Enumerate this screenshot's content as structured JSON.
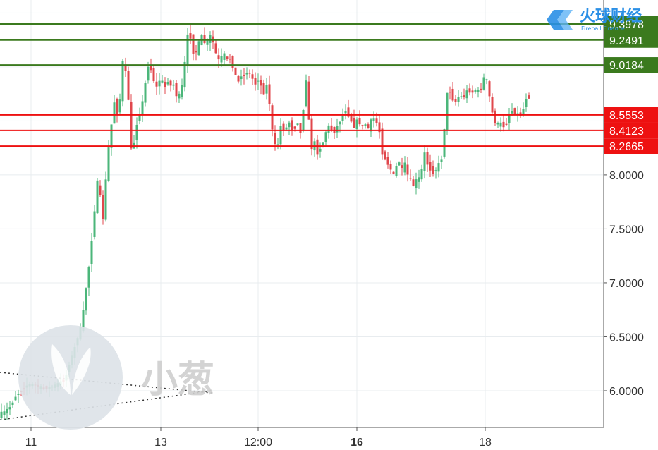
{
  "chart_data": {
    "type": "candlestick",
    "ylim": [
      5.66,
      9.62
    ],
    "y_ticks": [
      "6.0000",
      "6.5000",
      "7.0000",
      "7.5000",
      "8.0000"
    ],
    "x_ticks": [
      {
        "label": "11",
        "bold": false
      },
      {
        "label": "13",
        "bold": false
      },
      {
        "label": "12:00",
        "bold": false
      },
      {
        "label": "16",
        "bold": true
      },
      {
        "label": "18",
        "bold": false
      }
    ],
    "resistance_levels": [
      {
        "value": 9.3978,
        "label": "9.3978"
      },
      {
        "value": 9.2491,
        "label": "9.2491"
      },
      {
        "value": 9.0184,
        "label": "9.0184"
      }
    ],
    "support_levels": [
      {
        "value": 8.5553,
        "label": "8.5553"
      },
      {
        "value": 8.4123,
        "label": "8.4123"
      },
      {
        "value": 8.2665,
        "label": "8.2665"
      }
    ],
    "colors": {
      "up": "#4bb67a",
      "down": "#e0474c",
      "resistance": "#3b7a1e",
      "support": "#ee1111"
    },
    "path_points": [
      [
        0,
        5.78
      ],
      [
        8,
        5.8
      ],
      [
        16,
        5.85
      ],
      [
        24,
        5.95
      ],
      [
        32,
        6.0
      ],
      [
        40,
        6.05
      ],
      [
        48,
        6.06
      ],
      [
        56,
        6.04
      ],
      [
        64,
        6.02
      ],
      [
        72,
        6.03
      ],
      [
        80,
        6.05
      ],
      [
        88,
        6.08
      ],
      [
        94,
        6.1
      ],
      [
        100,
        6.25
      ],
      [
        106,
        6.35
      ],
      [
        112,
        6.5
      ],
      [
        118,
        6.62
      ],
      [
        122,
        6.85
      ],
      [
        126,
        7.05
      ],
      [
        130,
        7.25
      ],
      [
        134,
        7.55
      ],
      [
        138,
        7.8
      ],
      [
        141,
        8.0
      ],
      [
        144,
        7.8
      ],
      [
        148,
        7.6
      ],
      [
        152,
        7.95
      ],
      [
        156,
        8.25
      ],
      [
        159,
        8.35
      ],
      [
        162,
        8.7
      ],
      [
        166,
        8.65
      ],
      [
        170,
        8.5
      ],
      [
        173,
        8.8
      ],
      [
        176,
        9.05
      ],
      [
        180,
        8.95
      ],
      [
        184,
        8.7
      ],
      [
        187,
        8.3
      ],
      [
        190,
        8.1
      ],
      [
        193,
        8.4
      ],
      [
        197,
        8.5
      ],
      [
        201,
        8.6
      ],
      [
        205,
        8.7
      ],
      [
        209,
        8.9
      ],
      [
        213,
        9.05
      ],
      [
        217,
        8.95
      ],
      [
        221,
        8.85
      ],
      [
        225,
        8.8
      ],
      [
        229,
        8.9
      ],
      [
        233,
        8.85
      ],
      [
        237,
        8.8
      ],
      [
        241,
        8.9
      ],
      [
        245,
        8.8
      ],
      [
        249,
        8.85
      ],
      [
        253,
        8.7
      ],
      [
        257,
        8.75
      ],
      [
        261,
        8.85
      ],
      [
        265,
        9.1
      ],
      [
        269,
        9.35
      ],
      [
        273,
        9.25
      ],
      [
        277,
        9.1
      ],
      [
        281,
        9.15
      ],
      [
        285,
        9.25
      ],
      [
        289,
        9.3
      ],
      [
        293,
        9.2
      ],
      [
        297,
        9.25
      ],
      [
        301,
        9.3
      ],
      [
        305,
        9.2
      ],
      [
        309,
        9.1
      ],
      [
        313,
        9.05
      ],
      [
        317,
        9.1
      ],
      [
        321,
        9.12
      ],
      [
        325,
        9.05
      ],
      [
        329,
        9.08
      ],
      [
        333,
        8.98
      ],
      [
        337,
        8.9
      ],
      [
        341,
        8.85
      ],
      [
        345,
        8.95
      ],
      [
        349,
        8.9
      ],
      [
        353,
        8.97
      ],
      [
        357,
        8.92
      ],
      [
        361,
        8.88
      ],
      [
        365,
        8.83
      ],
      [
        369,
        8.9
      ],
      [
        373,
        8.8
      ],
      [
        377,
        8.75
      ],
      [
        381,
        8.85
      ],
      [
        385,
        8.6
      ],
      [
        389,
        8.35
      ],
      [
        393,
        8.25
      ],
      [
        397,
        8.3
      ],
      [
        401,
        8.5
      ],
      [
        405,
        8.4
      ],
      [
        409,
        8.45
      ],
      [
        413,
        8.5
      ],
      [
        417,
        8.4
      ],
      [
        421,
        8.45
      ],
      [
        425,
        8.5
      ],
      [
        429,
        8.35
      ],
      [
        433,
        8.7
      ],
      [
        437,
        8.95
      ],
      [
        440,
        8.5
      ],
      [
        444,
        8.25
      ],
      [
        448,
        8.3
      ],
      [
        452,
        8.2
      ],
      [
        456,
        8.25
      ],
      [
        460,
        8.3
      ],
      [
        464,
        8.4
      ],
      [
        468,
        8.45
      ],
      [
        472,
        8.42
      ],
      [
        476,
        8.4
      ],
      [
        480,
        8.45
      ],
      [
        484,
        8.5
      ],
      [
        488,
        8.55
      ],
      [
        492,
        8.6
      ],
      [
        496,
        8.55
      ],
      [
        500,
        8.5
      ],
      [
        504,
        8.45
      ],
      [
        508,
        8.5
      ],
      [
        512,
        8.48
      ],
      [
        516,
        8.45
      ],
      [
        520,
        8.47
      ],
      [
        524,
        8.43
      ],
      [
        528,
        8.5
      ],
      [
        532,
        8.52
      ],
      [
        536,
        8.48
      ],
      [
        540,
        8.4
      ],
      [
        544,
        8.2
      ],
      [
        548,
        8.15
      ],
      [
        552,
        8.1
      ],
      [
        556,
        8.05
      ],
      [
        560,
        8.0
      ],
      [
        564,
        8.08
      ],
      [
        568,
        8.12
      ],
      [
        572,
        8.05
      ],
      [
        576,
        8.1
      ],
      [
        580,
        8.0
      ],
      [
        584,
        7.95
      ],
      [
        588,
        7.9
      ],
      [
        592,
        7.95
      ],
      [
        596,
        7.97
      ],
      [
        600,
        8.05
      ],
      [
        604,
        8.2
      ],
      [
        608,
        8.1
      ],
      [
        612,
        8.05
      ],
      [
        616,
        8.02
      ],
      [
        620,
        8.05
      ],
      [
        624,
        8.1
      ],
      [
        628,
        8.15
      ],
      [
        631,
        8.3
      ],
      [
        634,
        8.7
      ],
      [
        638,
        8.8
      ],
      [
        642,
        8.75
      ],
      [
        646,
        8.65
      ],
      [
        650,
        8.7
      ],
      [
        654,
        8.75
      ],
      [
        658,
        8.7
      ],
      [
        662,
        8.75
      ],
      [
        666,
        8.8
      ],
      [
        670,
        8.75
      ],
      [
        674,
        8.78
      ],
      [
        678,
        8.8
      ],
      [
        682,
        8.75
      ],
      [
        686,
        8.85
      ],
      [
        690,
        8.95
      ],
      [
        694,
        8.8
      ],
      [
        698,
        8.65
      ],
      [
        702,
        8.5
      ],
      [
        706,
        8.48
      ],
      [
        710,
        8.45
      ],
      [
        714,
        8.5
      ],
      [
        718,
        8.4
      ],
      [
        722,
        8.55
      ],
      [
        726,
        8.58
      ],
      [
        730,
        8.6
      ],
      [
        734,
        8.55
      ],
      [
        738,
        8.58
      ],
      [
        742,
        8.52
      ],
      [
        746,
        8.7
      ],
      [
        750,
        8.72
      ]
    ]
  },
  "watermark": {
    "text": "小葱"
  },
  "brand": {
    "name": "火球财经",
    "sub": "Fireball Finance"
  }
}
